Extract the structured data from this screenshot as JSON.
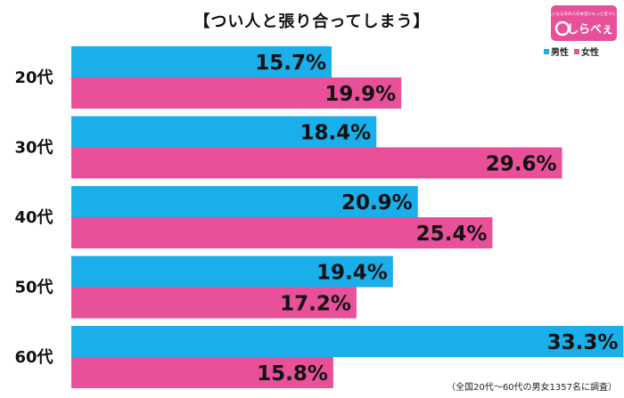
{
  "title": "【つい人と張り合ってしまう】",
  "logo": {
    "tagline": "気になるあの人の本音にもっと近づく！",
    "brand": "しらべぇ"
  },
  "colors": {
    "male": "#1aaeea",
    "female": "#e8519a",
    "label": "#e8519a"
  },
  "chart_data": {
    "type": "bar",
    "orientation": "horizontal",
    "categories": [
      "20代",
      "30代",
      "40代",
      "50代",
      "60代"
    ],
    "series": [
      {
        "name": "男性",
        "values": [
          15.7,
          18.4,
          20.9,
          19.4,
          33.3
        ]
      },
      {
        "name": "女性",
        "values": [
          19.9,
          29.6,
          25.4,
          17.2,
          15.8
        ]
      }
    ],
    "value_suffix": "%",
    "xlim": [
      0,
      36
    ],
    "legend_position": "top-right",
    "grid": false
  },
  "footnote": "（全国20代～60代の男女1357名に調査）"
}
